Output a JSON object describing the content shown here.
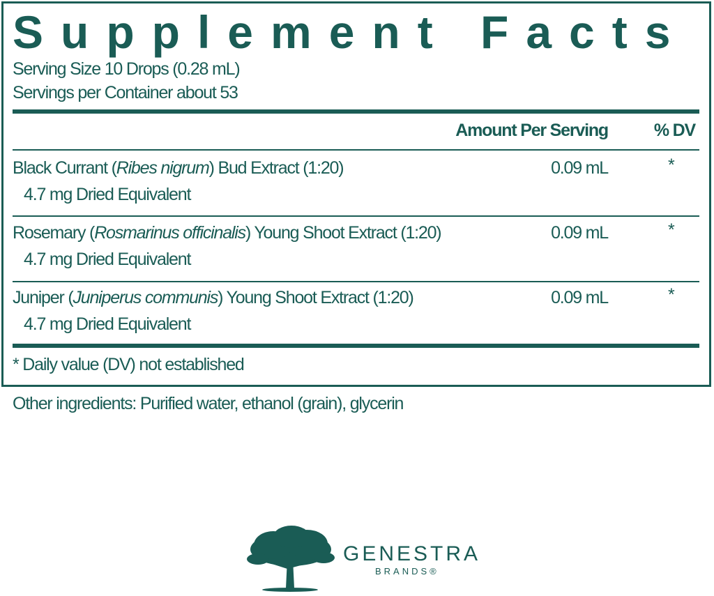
{
  "label": {
    "title": "Supplement Facts",
    "serving_size": "Serving Size 10 Drops (0.28 mL)",
    "servings_per_container": "Servings per Container about 53",
    "header": {
      "amount": "Amount Per Serving",
      "dv": "% DV"
    },
    "rows": [
      {
        "name": "Black Currant (",
        "latin": "Ribes nigrum",
        "rest": ") Bud Extract (1:20)",
        "sub": "4.7 mg Dried Equivalent",
        "amount": "0.09 mL",
        "dv": "*"
      },
      {
        "name": "Rosemary (",
        "latin": "Rosmarinus officinalis",
        "rest": ") Young Shoot Extract (1:20)",
        "sub": "4.7 mg Dried Equivalent",
        "amount": "0.09 mL",
        "dv": "*"
      },
      {
        "name": "Juniper (",
        "latin": "Juniperus communis",
        "rest": ") Young Shoot Extract (1:20)",
        "sub": "4.7 mg Dried Equivalent",
        "amount": "0.09 mL",
        "dv": "*"
      }
    ],
    "footnote": "* Daily value (DV) not established"
  },
  "other_ingredients": "Other ingredients: Purified water, ethanol (grain), glycerin",
  "logo": {
    "name": "GENESTRA",
    "sub": "BRANDS®",
    "icon": "oak-tree-icon"
  },
  "colors": {
    "brand": "#1a5c55"
  }
}
